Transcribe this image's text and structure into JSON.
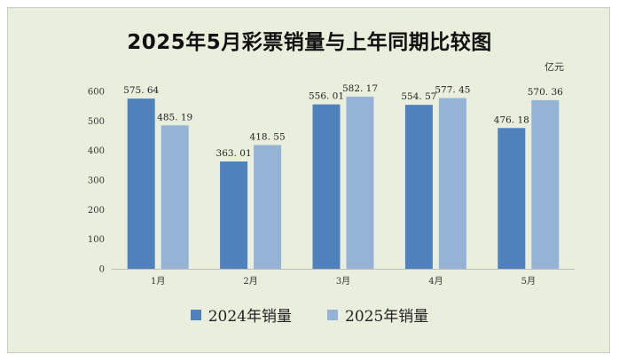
{
  "colors": {
    "series_2024": "#4f81bd",
    "series_2025": "#95b3d7",
    "background": "#eaefdd"
  },
  "chart_data": {
    "type": "bar",
    "title": "2025年5月彩票销量与上年同期比较图",
    "unit_label": "亿元",
    "categories": [
      "1月",
      "2月",
      "3月",
      "4月",
      "5月"
    ],
    "series": [
      {
        "name": "2024年销量",
        "values": [
          575.64,
          363.01,
          556.01,
          554.57,
          476.18
        ],
        "labels": [
          "575. 64",
          "363. 01",
          "556. 01",
          "554. 57",
          "476. 18"
        ]
      },
      {
        "name": "2025年销量",
        "values": [
          485.19,
          418.55,
          582.17,
          577.45,
          570.36
        ],
        "labels": [
          "485. 19",
          "418. 55",
          "582. 17",
          "577. 45",
          "570. 36"
        ]
      }
    ],
    "ylim": [
      0,
      600
    ],
    "yticks": [
      0,
      100,
      200,
      300,
      400,
      500,
      600
    ],
    "grid": false,
    "legend_position": "bottom"
  }
}
